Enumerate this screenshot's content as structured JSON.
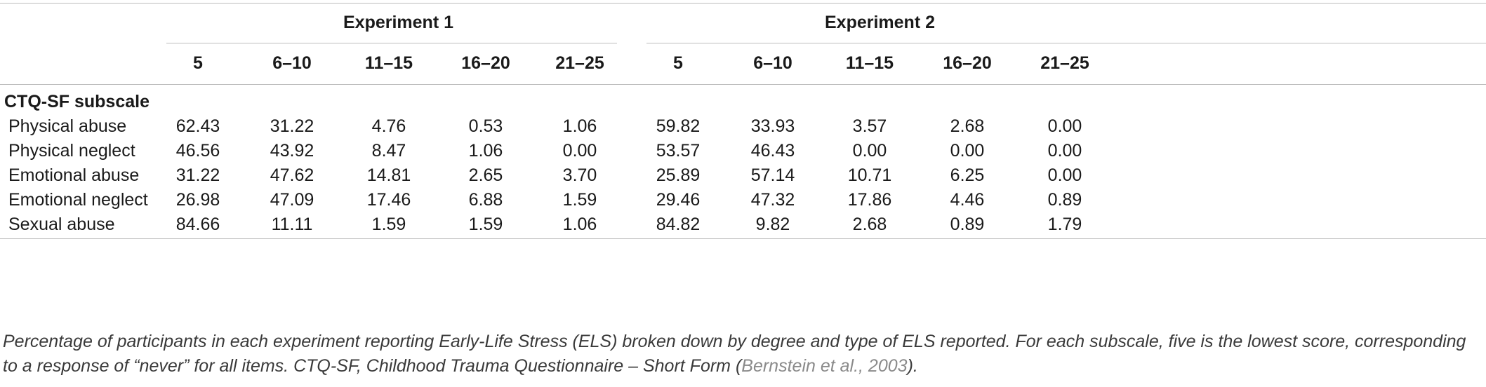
{
  "table": {
    "group_headers": [
      "Experiment 1",
      "Experiment 2"
    ],
    "column_headers": [
      "5",
      "6–10",
      "11–15",
      "16–20",
      "21–25",
      "5",
      "6–10",
      "11–15",
      "16–20",
      "21–25"
    ],
    "section_label": "CTQ-SF subscale",
    "rows": [
      {
        "label": "Physical abuse",
        "values": [
          "62.43",
          "31.22",
          "4.76",
          "0.53",
          "1.06",
          "59.82",
          "33.93",
          "3.57",
          "2.68",
          "0.00"
        ]
      },
      {
        "label": "Physical neglect",
        "values": [
          "46.56",
          "43.92",
          "8.47",
          "1.06",
          "0.00",
          "53.57",
          "46.43",
          "0.00",
          "0.00",
          "0.00"
        ]
      },
      {
        "label": "Emotional abuse",
        "values": [
          "31.22",
          "47.62",
          "14.81",
          "2.65",
          "3.70",
          "25.89",
          "57.14",
          "10.71",
          "6.25",
          "0.00"
        ]
      },
      {
        "label": "Emotional neglect",
        "values": [
          "26.98",
          "47.09",
          "17.46",
          "6.88",
          "1.59",
          "29.46",
          "47.32",
          "17.86",
          "4.46",
          "0.89"
        ]
      },
      {
        "label": "Sexual abuse",
        "values": [
          "84.66",
          "11.11",
          "1.59",
          "1.59",
          "1.06",
          "84.82",
          "9.82",
          "2.68",
          "0.89",
          "1.79"
        ]
      }
    ]
  },
  "caption": {
    "text_before": "Percentage of participants in each experiment reporting Early-Life Stress (ELS) broken down by degree and type of ELS reported. For each subscale, five is the lowest score, corresponding to a response of “never” for all items. CTQ-SF, Childhood Trauma Questionnaire – Short Form (",
    "citation": "Bernstein et al., 2003",
    "text_after": ")."
  }
}
